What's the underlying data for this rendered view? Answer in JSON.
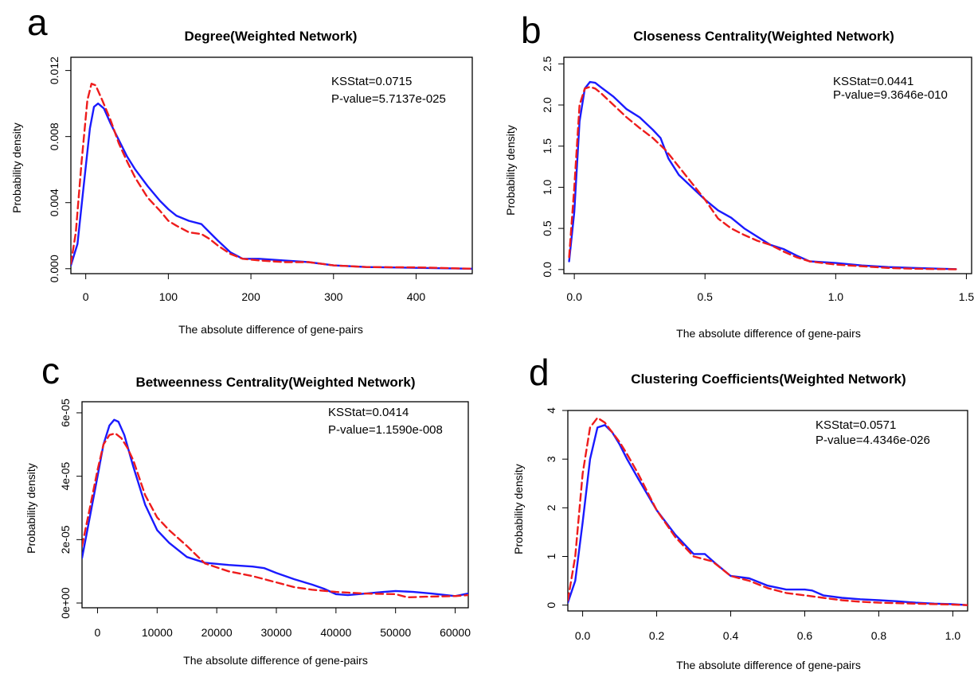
{
  "colors": {
    "blue": "#1a1aff",
    "red": "#ee1c1c",
    "frame": "#000000"
  },
  "chart_data": [
    {
      "panel_letter": "a",
      "type": "line",
      "title": "Degree(Weighted Network)",
      "xlabel": "The absolute difference of gene-pairs",
      "ylabel": "Probability density",
      "xlim": [
        -18,
        468
      ],
      "ylim": [
        -0.0003,
        0.0128
      ],
      "x_ticks": [
        0,
        100,
        200,
        300,
        400
      ],
      "x_tick_labels": [
        "0",
        "100",
        "200",
        "300",
        "400"
      ],
      "y_ticks": [
        0,
        0.004,
        0.008,
        0.012
      ],
      "y_tick_labels": [
        "0.000",
        "0.004",
        "0.008",
        "0.012"
      ],
      "stats": [
        "KSStat=0.0715",
        "P-value=5.7137e-025"
      ],
      "series": [
        {
          "color": "blue",
          "style": "solid",
          "x": [
            -18,
            -10,
            -3,
            5,
            10,
            15,
            22,
            30,
            40,
            50,
            60,
            75,
            90,
            100,
            110,
            125,
            140,
            150,
            160,
            175,
            190,
            210,
            240,
            270,
            300,
            340,
            400,
            468
          ],
          "y": [
            0.0002,
            0.0015,
            0.0048,
            0.0085,
            0.0098,
            0.01,
            0.0097,
            0.0088,
            0.0078,
            0.0068,
            0.006,
            0.005,
            0.0041,
            0.0036,
            0.0032,
            0.0029,
            0.0027,
            0.0022,
            0.0017,
            0.001,
            0.0006,
            0.0006,
            0.0005,
            0.0004,
            0.0002,
            0.0001,
            5e-05,
            0.0
          ]
        },
        {
          "color": "red",
          "style": "dashed",
          "x": [
            -18,
            -12,
            -5,
            2,
            7,
            12,
            20,
            30,
            40,
            50,
            60,
            75,
            90,
            100,
            110,
            125,
            140,
            150,
            160,
            175,
            190,
            210,
            240,
            270,
            300,
            340,
            400,
            468
          ],
          "y": [
            0.0003,
            0.0022,
            0.0065,
            0.0102,
            0.0112,
            0.0111,
            0.0102,
            0.009,
            0.0076,
            0.0065,
            0.0055,
            0.0043,
            0.0035,
            0.0029,
            0.0026,
            0.0022,
            0.0021,
            0.0018,
            0.0014,
            0.0009,
            0.0006,
            0.0005,
            0.0004,
            0.0004,
            0.0002,
            0.0001,
            8e-05,
            0.0
          ]
        }
      ]
    },
    {
      "panel_letter": "b",
      "type": "line",
      "title": "Closeness Centrality(Weighted Network)",
      "xlabel": "The absolute difference of gene-pairs",
      "ylabel": "Probability density",
      "xlim": [
        -0.04,
        1.52
      ],
      "ylim": [
        -0.05,
        2.58
      ],
      "x_ticks": [
        0.0,
        0.5,
        1.0,
        1.5
      ],
      "x_tick_labels": [
        "0.0",
        "0.5",
        "1.0",
        "1.5"
      ],
      "y_ticks": [
        0.0,
        0.5,
        1.0,
        1.5,
        2.0,
        2.5
      ],
      "y_tick_labels": [
        "0.0",
        "0.5",
        "1.0",
        "1.5",
        "2.0",
        "2.5"
      ],
      "stats": [
        "KSStat=0.0441",
        "P-value=9.3646e-010"
      ],
      "series": [
        {
          "color": "blue",
          "style": "solid",
          "x": [
            -0.02,
            0.0,
            0.02,
            0.04,
            0.06,
            0.08,
            0.1,
            0.15,
            0.2,
            0.25,
            0.3,
            0.33,
            0.36,
            0.4,
            0.45,
            0.5,
            0.55,
            0.6,
            0.65,
            0.7,
            0.75,
            0.8,
            0.85,
            0.9,
            1.0,
            1.1,
            1.2,
            1.3,
            1.4,
            1.46
          ],
          "y": [
            0.1,
            0.7,
            1.8,
            2.2,
            2.28,
            2.27,
            2.22,
            2.1,
            1.95,
            1.85,
            1.7,
            1.6,
            1.35,
            1.15,
            1.0,
            0.85,
            0.72,
            0.63,
            0.5,
            0.4,
            0.3,
            0.25,
            0.17,
            0.1,
            0.08,
            0.05,
            0.03,
            0.02,
            0.01,
            0.005
          ]
        },
        {
          "color": "red",
          "style": "dashed",
          "x": [
            -0.02,
            0.0,
            0.02,
            0.04,
            0.06,
            0.08,
            0.1,
            0.15,
            0.2,
            0.25,
            0.3,
            0.35,
            0.4,
            0.45,
            0.5,
            0.55,
            0.6,
            0.65,
            0.7,
            0.75,
            0.8,
            0.85,
            0.9,
            1.0,
            1.1,
            1.2,
            1.3,
            1.4,
            1.46
          ],
          "y": [
            0.15,
            1.0,
            2.0,
            2.2,
            2.22,
            2.2,
            2.15,
            2.0,
            1.85,
            1.72,
            1.6,
            1.45,
            1.25,
            1.05,
            0.85,
            0.62,
            0.5,
            0.42,
            0.35,
            0.3,
            0.22,
            0.15,
            0.1,
            0.06,
            0.04,
            0.02,
            0.01,
            0.005,
            0.003
          ]
        }
      ]
    },
    {
      "panel_letter": "c",
      "type": "line",
      "title": "Betweenness Centrality(Weighted Network)",
      "xlabel": "The absolute difference of gene-pairs",
      "ylabel": "Probability density",
      "xlim": [
        -2600,
        62200
      ],
      "ylim": [
        -1.5e-06,
        6.35e-05
      ],
      "x_ticks": [
        0,
        10000,
        20000,
        30000,
        40000,
        50000,
        60000
      ],
      "x_tick_labels": [
        "0",
        "10000",
        "20000",
        "30000",
        "40000",
        "50000",
        "60000"
      ],
      "y_ticks": [
        0,
        2e-05,
        4e-05,
        6e-05
      ],
      "y_tick_labels": [
        "0e+00",
        "2e-05",
        "4e-05",
        "6e-05"
      ],
      "stats": [
        "KSStat=0.0414",
        "P-value=1.1590e-008"
      ],
      "series": [
        {
          "color": "blue",
          "style": "solid",
          "x": [
            -2600,
            -1500,
            0,
            1000,
            2000,
            2800,
            3500,
            4500,
            6000,
            8000,
            10000,
            12000,
            15000,
            18000,
            22000,
            26000,
            28000,
            30000,
            33000,
            36000,
            38000,
            40000,
            42000,
            45000,
            48000,
            50000,
            53000,
            56000,
            60000,
            62200
          ],
          "y": [
            1.42e-05,
            2.5e-05,
            4e-05,
            5e-05,
            5.6e-05,
            5.78e-05,
            5.72e-05,
            5.3e-05,
            4.3e-05,
            3.1e-05,
            2.3e-05,
            1.9e-05,
            1.45e-05,
            1.27e-05,
            1.2e-05,
            1.15e-05,
            1.1e-05,
            9.5e-06,
            7.5e-06,
            5.8e-06,
            4.5e-06,
            2.8e-06,
            2.5e-06,
            3e-06,
            3.5e-06,
            3.8e-06,
            3.5e-06,
            3e-06,
            2.2e-06,
            3e-06
          ]
        },
        {
          "color": "red",
          "style": "dashed",
          "x": [
            -2600,
            -1500,
            0,
            1000,
            2000,
            3000,
            4000,
            5000,
            6000,
            8000,
            10000,
            12000,
            15000,
            18000,
            22000,
            26000,
            28000,
            30000,
            33000,
            36000,
            40000,
            45000,
            50000,
            52000,
            55000,
            60000,
            62200
          ],
          "y": [
            1.8e-05,
            2.8e-05,
            4.2e-05,
            5e-05,
            5.3e-05,
            5.35e-05,
            5.2e-05,
            4.9e-05,
            4.5e-05,
            3.4e-05,
            2.7e-05,
            2.3e-05,
            1.8e-05,
            1.25e-05,
            1e-05,
            8.5e-06,
            7.5e-06,
            6.5e-06,
            5e-06,
            4.2e-06,
            3.5e-06,
            3e-06,
            2.8e-06,
            1.8e-06,
            2e-06,
            2.2e-06,
            2.5e-06
          ]
        }
      ]
    },
    {
      "panel_letter": "d",
      "type": "line",
      "title": "Clustering Coefficients(Weighted Network)",
      "xlabel": "The absolute difference of gene-pairs",
      "ylabel": "Probability density",
      "xlim": [
        -0.04,
        1.04
      ],
      "ylim": [
        -0.12,
        4.0
      ],
      "x_ticks": [
        0.0,
        0.2,
        0.4,
        0.6,
        0.8,
        1.0
      ],
      "x_tick_labels": [
        "0.0",
        "0.2",
        "0.4",
        "0.6",
        "0.8",
        "1.0"
      ],
      "y_ticks": [
        0,
        1,
        2,
        3,
        4
      ],
      "y_tick_labels": [
        "0",
        "1",
        "2",
        "3",
        "4"
      ],
      "stats": [
        "KSStat=0.0571",
        "P-value=4.4346e-026"
      ],
      "series": [
        {
          "color": "blue",
          "style": "solid",
          "x": [
            -0.04,
            -0.02,
            0.0,
            0.02,
            0.04,
            0.06,
            0.08,
            0.1,
            0.12,
            0.15,
            0.2,
            0.25,
            0.3,
            0.33,
            0.36,
            0.4,
            0.45,
            0.5,
            0.55,
            0.6,
            0.62,
            0.65,
            0.7,
            0.75,
            0.8,
            0.85,
            0.9,
            0.95,
            1.0,
            1.04
          ],
          "y": [
            0.05,
            0.5,
            1.7,
            3.0,
            3.65,
            3.7,
            3.55,
            3.3,
            3.0,
            2.6,
            1.95,
            1.45,
            1.05,
            1.05,
            0.85,
            0.6,
            0.55,
            0.4,
            0.32,
            0.32,
            0.3,
            0.2,
            0.15,
            0.12,
            0.1,
            0.08,
            0.05,
            0.03,
            0.02,
            0.0
          ]
        },
        {
          "color": "red",
          "style": "dashed",
          "x": [
            -0.04,
            -0.02,
            0.0,
            0.02,
            0.04,
            0.06,
            0.08,
            0.1,
            0.12,
            0.15,
            0.2,
            0.25,
            0.3,
            0.35,
            0.4,
            0.45,
            0.5,
            0.55,
            0.6,
            0.65,
            0.7,
            0.75,
            0.8,
            0.85,
            0.9,
            0.95,
            1.0,
            1.04
          ],
          "y": [
            0.1,
            1.0,
            2.7,
            3.65,
            3.85,
            3.75,
            3.55,
            3.35,
            3.1,
            2.7,
            1.95,
            1.4,
            1.0,
            0.9,
            0.6,
            0.5,
            0.35,
            0.25,
            0.2,
            0.15,
            0.1,
            0.07,
            0.05,
            0.04,
            0.03,
            0.02,
            0.01,
            0.0
          ]
        }
      ]
    }
  ]
}
